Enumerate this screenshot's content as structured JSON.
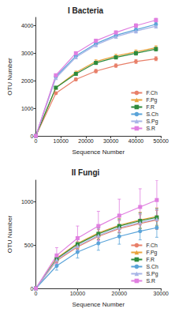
{
  "chart_data": [
    {
      "type": "line",
      "title": "I Bacteria",
      "x_label": "Sequence Number",
      "y_label": "OTU Number",
      "x": [
        0,
        8000,
        16000,
        24000,
        32000,
        40000,
        48000
      ],
      "xlim": [
        0,
        50000
      ],
      "xticks": [
        0,
        10000,
        20000,
        30000,
        40000,
        50000
      ],
      "ylim": [
        0,
        4300
      ],
      "yticks": [
        0,
        1000,
        2000,
        3000,
        4000
      ],
      "grid": false,
      "legend": "lower right",
      "series": [
        {
          "name": "F.Ch",
          "color": "#e8806a",
          "marker": "circle",
          "values": [
            0,
            1550,
            2050,
            2350,
            2550,
            2700,
            2800
          ],
          "error": [
            0,
            40,
            50,
            60,
            60,
            70,
            70
          ]
        },
        {
          "name": "F.Pg",
          "color": "#e9a23b",
          "marker": "triangle",
          "values": [
            0,
            1750,
            2300,
            2700,
            2900,
            3050,
            3200
          ],
          "error": [
            0,
            40,
            50,
            60,
            60,
            70,
            70
          ]
        },
        {
          "name": "F.R",
          "color": "#2e8b3c",
          "marker": "square",
          "values": [
            0,
            1750,
            2250,
            2650,
            2850,
            3000,
            3150
          ],
          "error": [
            0,
            40,
            50,
            60,
            60,
            70,
            70
          ]
        },
        {
          "name": "S.Ch",
          "color": "#5ba4d9",
          "marker": "circle",
          "values": [
            0,
            2150,
            2900,
            3350,
            3650,
            3850,
            4050
          ],
          "error": [
            0,
            40,
            50,
            60,
            60,
            70,
            70
          ]
        },
        {
          "name": "S.Pg",
          "color": "#a7b4e6",
          "marker": "triangle",
          "values": [
            0,
            2100,
            2850,
            3300,
            3600,
            3800,
            3980
          ],
          "error": [
            0,
            40,
            50,
            60,
            60,
            70,
            70
          ]
        },
        {
          "name": "S.R",
          "color": "#e07fe0",
          "marker": "square",
          "values": [
            0,
            2200,
            3000,
            3450,
            3750,
            4000,
            4200
          ],
          "error": [
            0,
            40,
            50,
            60,
            60,
            70,
            70
          ]
        }
      ]
    },
    {
      "type": "line",
      "title": "II Fungi",
      "x_label": "Sequence Number",
      "y_label": "OTU Number",
      "x": [
        0,
        5000,
        10000,
        15000,
        20000,
        25000,
        29000
      ],
      "xlim": [
        0,
        30000
      ],
      "xticks": [
        0,
        10000,
        20000,
        30000
      ],
      "ylim": [
        0,
        1250
      ],
      "yticks": [
        0,
        500,
        1000
      ],
      "grid": false,
      "legend": "lower right",
      "series": [
        {
          "name": "F.Ch",
          "color": "#e8806a",
          "marker": "circle",
          "values": [
            0,
            320,
            480,
            600,
            690,
            750,
            790
          ],
          "error": [
            0,
            40,
            60,
            80,
            90,
            100,
            110
          ]
        },
        {
          "name": "F.Pg",
          "color": "#e9a23b",
          "marker": "triangle",
          "values": [
            0,
            350,
            520,
            640,
            730,
            790,
            830
          ],
          "error": [
            0,
            40,
            60,
            70,
            80,
            90,
            100
          ]
        },
        {
          "name": "F.R",
          "color": "#2e8b3c",
          "marker": "square",
          "values": [
            0,
            340,
            510,
            630,
            720,
            780,
            820
          ],
          "error": [
            0,
            40,
            60,
            70,
            80,
            90,
            100
          ]
        },
        {
          "name": "S.Ch",
          "color": "#5ba4d9",
          "marker": "circle",
          "values": [
            0,
            260,
            420,
            520,
            600,
            660,
            700
          ],
          "error": [
            0,
            50,
            70,
            80,
            90,
            100,
            110
          ]
        },
        {
          "name": "S.Pg",
          "color": "#a7b4e6",
          "marker": "triangle",
          "values": [
            0,
            330,
            490,
            610,
            700,
            760,
            800
          ],
          "error": [
            0,
            50,
            70,
            80,
            90,
            100,
            110
          ]
        },
        {
          "name": "S.R",
          "color": "#e07fe0",
          "marker": "square",
          "values": [
            0,
            380,
            580,
            720,
            840,
            940,
            1020
          ],
          "error": [
            0,
            90,
            140,
            170,
            190,
            210,
            230
          ]
        }
      ]
    }
  ]
}
